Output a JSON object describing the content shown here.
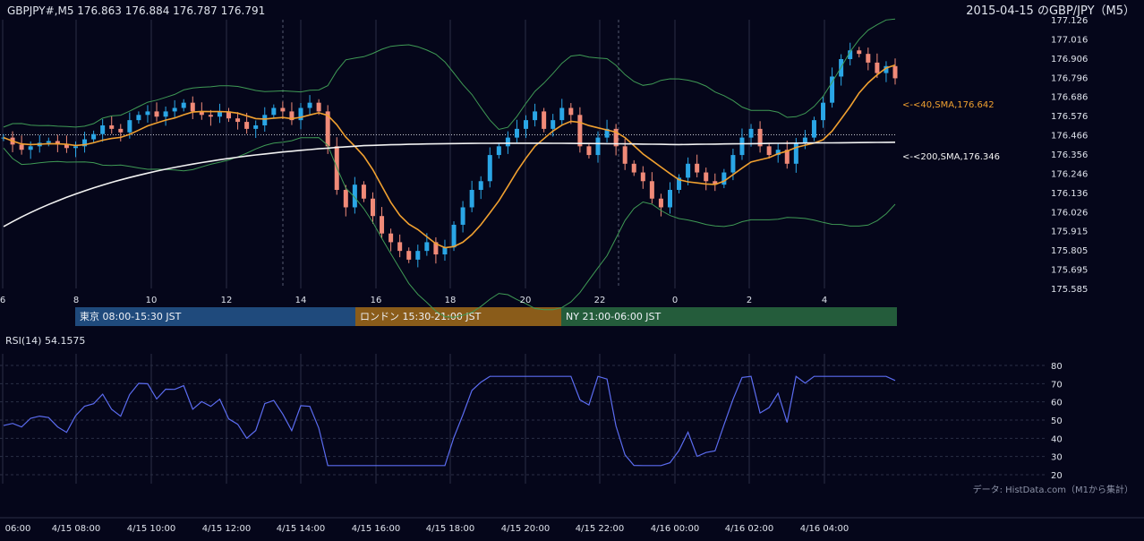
{
  "header": {
    "symbol_info": "GBPJPY#,M5 176.863 176.884 176.787 176.791",
    "title": "2015-04-15 のGBP/JPY（M5）"
  },
  "colors": {
    "background": "#05061a",
    "grid": "#2a2f45",
    "candle_up": "#2aa6e6",
    "candle_down": "#f08a78",
    "bollinger": "#3f9a55",
    "sma40": "#f0a030",
    "sma200": "#f2f2f2",
    "rsi": "#5b6cf0",
    "text": "#dfe3ec"
  },
  "chart_data": [
    {
      "type": "candlestick",
      "name": "price",
      "y_ticks": [
        "177.126",
        "177.016",
        "176.906",
        "176.796",
        "176.686",
        "176.576",
        "176.466",
        "176.356",
        "176.246",
        "176.136",
        "176.026",
        "175.915",
        "175.805",
        "175.695",
        "175.585"
      ],
      "ylim": [
        175.585,
        177.126
      ],
      "x_hour_ticks": [
        "6",
        "8",
        "10",
        "12",
        "14",
        "16",
        "18",
        "20",
        "22",
        "0",
        "2",
        "4"
      ],
      "ref_line": 176.466,
      "close_series": [
        176.45,
        176.41,
        176.38,
        176.4,
        176.42,
        176.43,
        176.41,
        176.39,
        176.4,
        176.44,
        176.47,
        176.52,
        176.5,
        176.48,
        176.55,
        176.58,
        176.6,
        176.57,
        176.6,
        176.62,
        176.65,
        176.6,
        176.58,
        176.57,
        176.6,
        176.56,
        176.54,
        176.5,
        176.52,
        176.58,
        176.62,
        176.6,
        176.55,
        176.62,
        176.65,
        176.6,
        176.4,
        176.15,
        176.05,
        176.18,
        176.1,
        176.0,
        175.9,
        175.85,
        175.8,
        175.75,
        175.8,
        175.85,
        175.78,
        175.82,
        175.95,
        176.05,
        176.15,
        176.2,
        176.35,
        176.4,
        176.45,
        176.5,
        176.55,
        176.6,
        176.5,
        176.55,
        176.62,
        176.58,
        176.4,
        176.35,
        176.45,
        176.5,
        176.4,
        176.3,
        176.25,
        176.2,
        176.1,
        176.05,
        176.15,
        176.22,
        176.3,
        176.25,
        176.2,
        176.18,
        176.25,
        176.35,
        176.45,
        176.5,
        176.4,
        176.35,
        176.38,
        176.3,
        176.42,
        176.45,
        176.55,
        176.65,
        176.8,
        176.9,
        176.95,
        176.93,
        176.88,
        176.82,
        176.86,
        176.79
      ],
      "indicators": [
        {
          "name": "<-<40,SMA,176.642",
          "value": 176.642
        },
        {
          "name": "<-<200,SMA,176.346",
          "value": 176.346
        }
      ]
    },
    {
      "type": "line",
      "name": "rsi",
      "title": "RSI(14) 54.1575",
      "y_ticks": [
        "80",
        "70",
        "60",
        "50",
        "40",
        "30",
        "20"
      ],
      "ylim": [
        20,
        80
      ]
    }
  ],
  "sessions": [
    {
      "label": "東京 08:00-15:30 JST",
      "color": "#1f4a7c"
    },
    {
      "label": "ロンドン 15:30-21:00 JST",
      "color": "#8a5c1a"
    },
    {
      "label": "NY 21:00-06:00 JST",
      "color": "#245c3b"
    }
  ],
  "bottom_axis": [
    "06:00",
    "4/15 08:00",
    "4/15 10:00",
    "4/15 12:00",
    "4/15 14:00",
    "4/15 16:00",
    "4/15 18:00",
    "4/15 20:00",
    "4/15 22:00",
    "4/16 00:00",
    "4/16 02:00",
    "4/16 04:00"
  ],
  "footer": {
    "source": "データ: HistData.com（M1から集計）"
  }
}
